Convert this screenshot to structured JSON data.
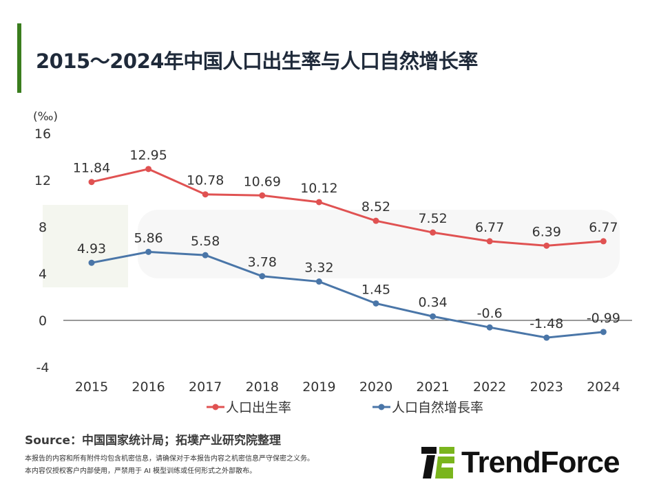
{
  "title": "2015～2024年中国人口出生率与人口自然增长率",
  "source": "Source：中国国家统计局；拓墣产业研究院整理",
  "notes": [
    "本报告的内容和所有附件均包含机密信息，请确保对于本报告内容之机密信息严守保密之义务。",
    "本内容仅授权客户内部使用，严禁用于 AI 模型训练或任何形式之外部散布。"
  ],
  "logo": "TrendForce",
  "watermark": "TrendForce",
  "chart_data": {
    "type": "line",
    "title": "",
    "ylabel": "(‰)",
    "ylim": [
      -4,
      16
    ],
    "yticks": [
      16,
      12,
      8,
      4,
      0,
      -4
    ],
    "categories": [
      "2015",
      "2016",
      "2017",
      "2018",
      "2019",
      "2020",
      "2021",
      "2022",
      "2023",
      "2024"
    ],
    "legend_position": "bottom",
    "series": [
      {
        "name": "人口出生率",
        "color": "#e05252",
        "values": [
          11.84,
          12.95,
          10.78,
          10.69,
          10.12,
          8.52,
          7.52,
          6.77,
          6.39,
          6.77
        ],
        "labels": [
          "11.84",
          "12.95",
          "10.78",
          "10.69",
          "10.12",
          "8.52",
          "7.52",
          "6.77",
          "6.39",
          "6.77"
        ]
      },
      {
        "name": "人口自然增長率",
        "color": "#4a76a8",
        "values": [
          4.93,
          5.86,
          5.58,
          3.78,
          3.32,
          1.45,
          0.34,
          -0.6,
          -1.48,
          -0.99
        ],
        "labels": [
          "4.93",
          "5.86",
          "5.58",
          "3.78",
          "3.32",
          "1.45",
          "0.34",
          "-0.6",
          "-1.48",
          "-0.99"
        ]
      }
    ]
  }
}
